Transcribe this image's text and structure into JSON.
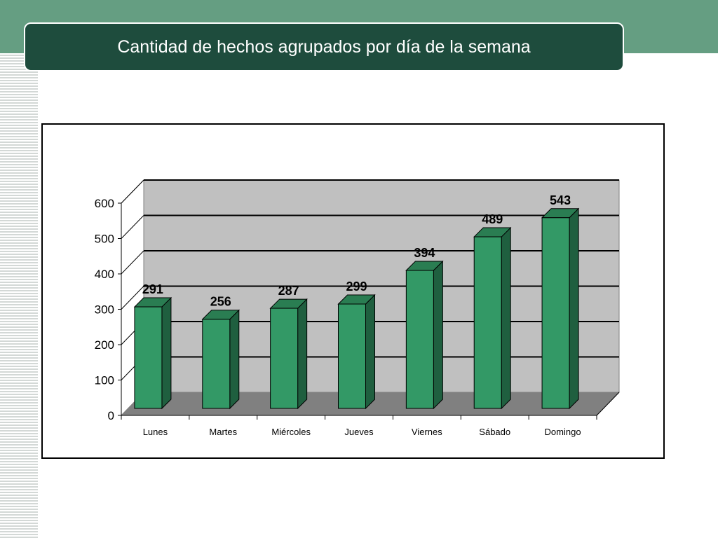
{
  "slide": {
    "title": "Cantidad de hechos agrupados por día de la semana"
  },
  "colors": {
    "band": "#659e82",
    "title_bg": "#1e4c3d",
    "bar_front": "#339966",
    "bar_side": "#1f5f3f",
    "bar_top": "#2a7d52",
    "back_wall": "#c0c0c0",
    "floor": "#808080"
  },
  "chart_data": {
    "type": "bar",
    "categories": [
      "Lunes",
      "Martes",
      "Miércoles",
      "Jueves",
      "Viernes",
      "Sábado",
      "Domingo"
    ],
    "values": [
      291,
      256,
      287,
      299,
      394,
      489,
      543
    ],
    "data_labels": [
      "291",
      "256",
      "287",
      "299",
      "394",
      "489",
      "543"
    ],
    "yticks": [
      "0",
      "100",
      "200",
      "300",
      "400",
      "500",
      "600"
    ],
    "ylim": [
      0,
      600
    ],
    "grid": true,
    "style": "3d-column",
    "legend": "none"
  }
}
